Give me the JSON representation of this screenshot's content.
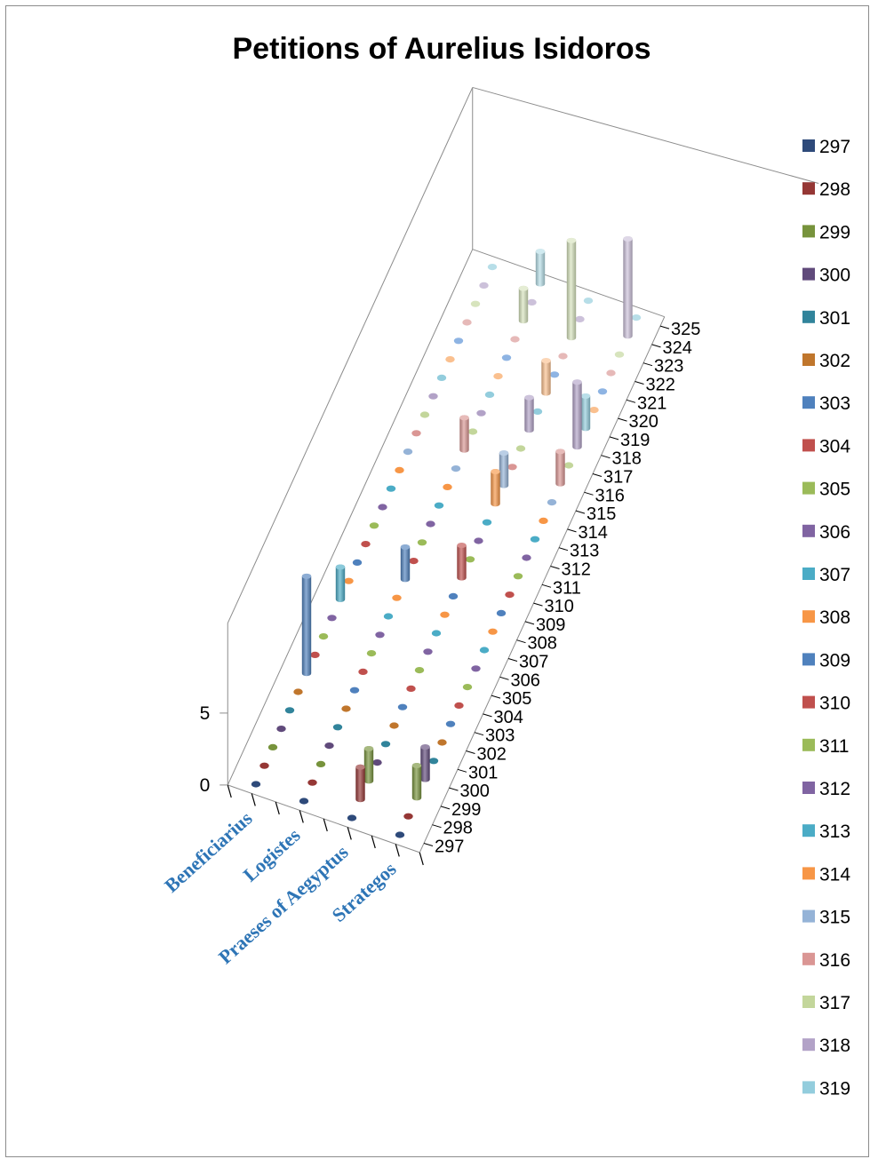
{
  "chart_data": {
    "type": "bar",
    "style": "3d-cylinder",
    "title": "Petitions of Aurelius Isidoros",
    "categories": [
      "Beneficiarius",
      "Logistes",
      "Praeses of Aegyptus",
      "Strategos"
    ],
    "depth_labels": [
      "297",
      "298",
      "299",
      "300",
      "301",
      "302",
      "303",
      "304",
      "305",
      "306",
      "307",
      "308",
      "309",
      "310",
      "311",
      "312",
      "313",
      "314",
      "315",
      "316",
      "317",
      "318",
      "319",
      "320",
      "321",
      "322",
      "323",
      "324",
      "325"
    ],
    "z_ticks": [
      "0",
      "5"
    ],
    "zlim": [
      0,
      5
    ],
    "legend_position": "right",
    "category_label_color": "#2e75b6",
    "series": [
      {
        "name": "297",
        "color": "#2e4a7a",
        "values": [
          0,
          0,
          0,
          0
        ]
      },
      {
        "name": "298",
        "color": "#953735",
        "values": [
          0,
          0,
          1,
          0
        ]
      },
      {
        "name": "299",
        "color": "#77933c",
        "values": [
          0,
          0,
          1,
          1
        ]
      },
      {
        "name": "300",
        "color": "#604a7b",
        "values": [
          0,
          0,
          0,
          1
        ]
      },
      {
        "name": "301",
        "color": "#31849b",
        "values": [
          0,
          0,
          0,
          0
        ]
      },
      {
        "name": "302",
        "color": "#c0762c",
        "values": [
          0,
          0,
          0,
          0
        ]
      },
      {
        "name": "303",
        "color": "#4f81bd",
        "values": [
          3,
          0,
          0,
          0
        ]
      },
      {
        "name": "304",
        "color": "#c0504d",
        "values": [
          0,
          0,
          0,
          0
        ]
      },
      {
        "name": "305",
        "color": "#9bbb59",
        "values": [
          0,
          0,
          0,
          0
        ]
      },
      {
        "name": "306",
        "color": "#8064a2",
        "values": [
          0,
          0,
          0,
          0
        ]
      },
      {
        "name": "307",
        "color": "#4bacc6",
        "values": [
          1,
          0,
          0,
          0
        ]
      },
      {
        "name": "308",
        "color": "#f79646",
        "values": [
          0,
          0,
          0,
          0
        ]
      },
      {
        "name": "309",
        "color": "#4f81bd",
        "values": [
          0,
          1,
          0,
          0
        ]
      },
      {
        "name": "310",
        "color": "#c0504d",
        "values": [
          0,
          0,
          1,
          0
        ]
      },
      {
        "name": "311",
        "color": "#9bbb59",
        "values": [
          0,
          0,
          0,
          0
        ]
      },
      {
        "name": "312",
        "color": "#8064a2",
        "values": [
          0,
          0,
          0,
          0
        ]
      },
      {
        "name": "313",
        "color": "#4bacc6",
        "values": [
          0,
          0,
          0,
          0
        ]
      },
      {
        "name": "314",
        "color": "#f79646",
        "values": [
          0,
          0,
          1,
          0
        ]
      },
      {
        "name": "315",
        "color": "#95b3d7",
        "values": [
          0,
          0,
          1,
          0
        ]
      },
      {
        "name": "316",
        "color": "#da9694",
        "values": [
          0,
          1,
          0,
          1
        ]
      },
      {
        "name": "317",
        "color": "#c3d69b",
        "values": [
          0,
          0,
          0,
          0
        ]
      },
      {
        "name": "318",
        "color": "#b2a2c7",
        "values": [
          0,
          0,
          1,
          2
        ]
      },
      {
        "name": "319",
        "color": "#93cddd",
        "values": [
          0,
          0,
          0,
          1
        ]
      },
      {
        "name": "320",
        "color": "#fac08f",
        "values": [
          0,
          0,
          1,
          0
        ]
      },
      {
        "name": "321",
        "color": "#8eb4e3",
        "values": [
          0,
          0,
          0,
          0
        ]
      },
      {
        "name": "322",
        "color": "#e6b9b8",
        "values": [
          0,
          0,
          0,
          0
        ]
      },
      {
        "name": "323",
        "color": "#d7e4bd",
        "values": [
          0,
          1,
          3,
          0
        ]
      },
      {
        "name": "324",
        "color": "#ccc1da",
        "values": [
          0,
          0,
          0,
          3
        ]
      },
      {
        "name": "325",
        "color": "#b7dee8",
        "values": [
          0,
          1,
          0,
          0
        ]
      }
    ],
    "legend_visible_count": 23
  }
}
